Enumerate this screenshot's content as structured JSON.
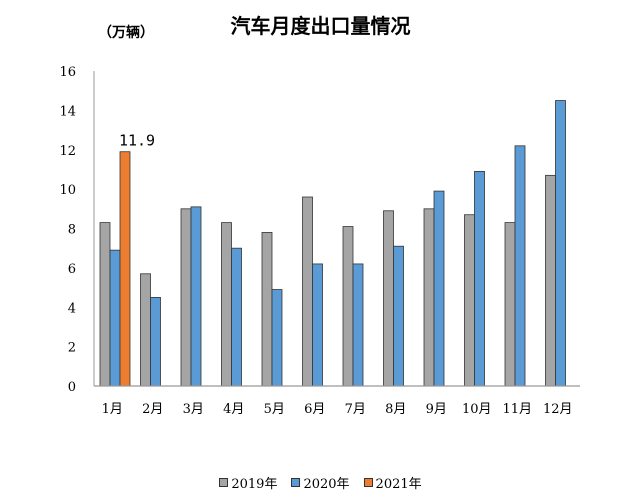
{
  "chart_data": {
    "type": "bar",
    "title": "汽车月度出口量情况",
    "ylabel": "（万辆）",
    "xlabel": "",
    "ylim": [
      0,
      16
    ],
    "yticks": [
      0,
      2,
      4,
      6,
      8,
      10,
      12,
      14,
      16
    ],
    "grid": false,
    "legend": "bottom",
    "categories": [
      "1月",
      "2月",
      "3月",
      "4月",
      "5月",
      "6月",
      "7月",
      "8月",
      "9月",
      "10月",
      "11月",
      "12月"
    ],
    "series": [
      {
        "name": "2019年",
        "color": "#a5a5a5",
        "values": [
          8.3,
          5.7,
          9.0,
          8.3,
          7.8,
          9.6,
          8.1,
          8.9,
          9.0,
          8.7,
          8.3,
          10.7
        ]
      },
      {
        "name": "2020年",
        "color": "#5b9bd5",
        "values": [
          6.9,
          4.5,
          9.1,
          7.0,
          4.9,
          6.2,
          6.2,
          7.1,
          9.9,
          10.9,
          12.2,
          14.5
        ]
      },
      {
        "name": "2021年",
        "color": "#ed7d31",
        "values": [
          11.9,
          null,
          null,
          null,
          null,
          null,
          null,
          null,
          null,
          null,
          null,
          null
        ]
      }
    ],
    "annotations": [
      {
        "category": "1月",
        "series": "2021年",
        "text": "11.9"
      }
    ]
  }
}
